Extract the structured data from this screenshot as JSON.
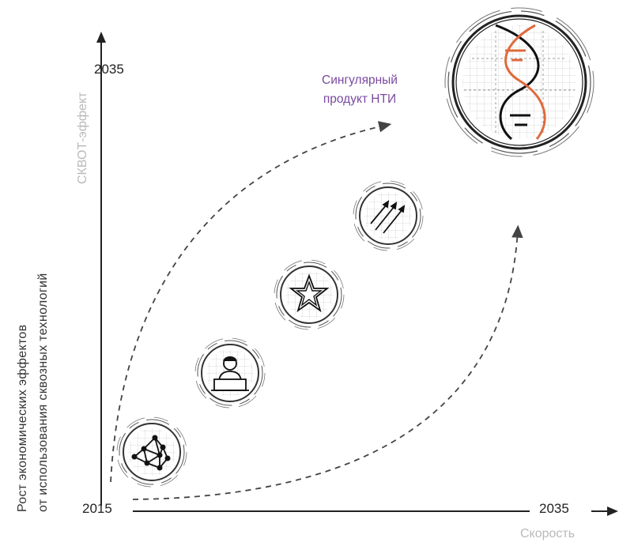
{
  "axes": {
    "y_axis_name": "СКВОТ-эффект",
    "x_axis_name": "Скорость",
    "y_top_year": "2035",
    "x_right_year": "2035",
    "origin_year": "2015"
  },
  "y_title": {
    "line1": "Рост экономических эффектов",
    "line2": "от использования сквозных технологий"
  },
  "target_label": {
    "line1": "Сингулярный",
    "line2": "продукт НТИ"
  },
  "stages": [
    {
      "icon": "network-graph-icon"
    },
    {
      "icon": "person-at-laptop-icon"
    },
    {
      "icon": "star-icon"
    },
    {
      "icon": "growth-arrows-icon"
    },
    {
      "icon": "dna-helix-icon"
    }
  ],
  "colors": {
    "axis": "#222222",
    "accent_orange": "#e06a3c",
    "label_purple": "#7a4aa0",
    "axis_name_gray": "#b9b9b9"
  }
}
